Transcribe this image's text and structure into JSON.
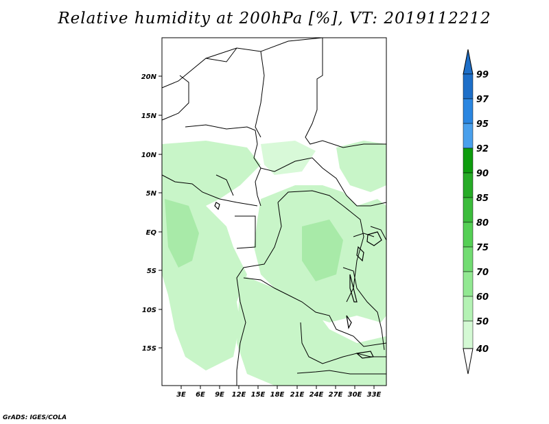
{
  "title": "Relative humidity at 200hPa [%], VT: 2019112212",
  "credit": "GrADS: IGES/COLA",
  "map": {
    "lat_labels": [
      "20N",
      "15N",
      "10N",
      "5N",
      "EQ",
      "5S",
      "10S",
      "15S"
    ],
    "lon_labels": [
      "3E",
      "6E",
      "9E",
      "12E",
      "15E",
      "18E",
      "21E",
      "24E",
      "27E",
      "30E",
      "33E"
    ]
  },
  "colorbar": {
    "levels": [
      "99",
      "97",
      "95",
      "92",
      "90",
      "85",
      "80",
      "75",
      "70",
      "60",
      "50",
      "40"
    ],
    "colors": [
      "#1e6fc8",
      "#2b86e0",
      "#4aa0ec",
      "#0e9c0e",
      "#27ab27",
      "#3cbc3c",
      "#55cf55",
      "#72dc72",
      "#92e892",
      "#b4f2b4",
      "#d4f9d4",
      "#eefdee"
    ]
  }
}
